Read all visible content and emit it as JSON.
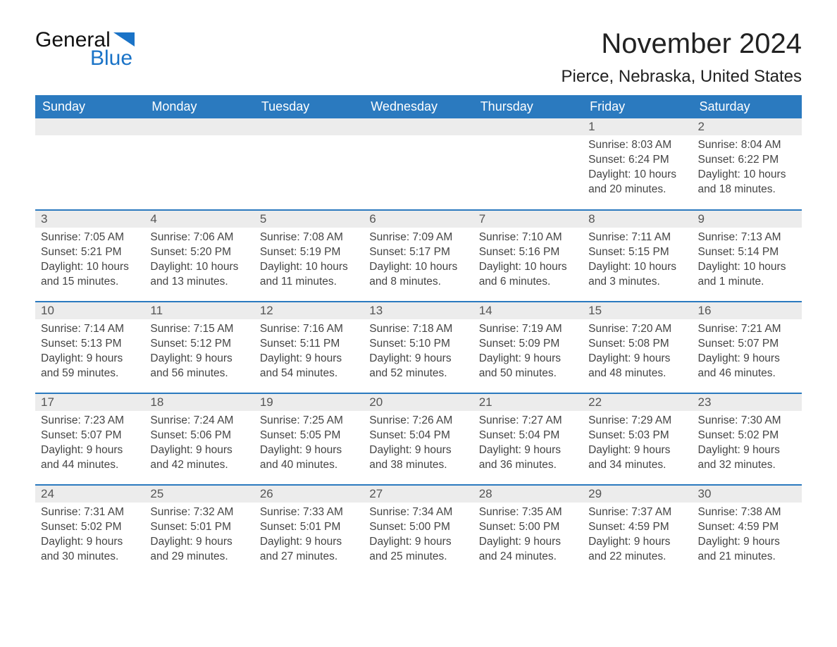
{
  "logo": {
    "text1": "General",
    "text2": "Blue",
    "accent_color": "#1a73c7"
  },
  "title": "November 2024",
  "location": "Pierce, Nebraska, United States",
  "colors": {
    "header_bg": "#2b7abf",
    "header_text": "#ffffff",
    "daynum_bg": "#ececec",
    "daynum_text": "#555555",
    "body_text": "#444444",
    "row_border": "#2b7abf"
  },
  "fonts": {
    "title_size": 40,
    "location_size": 24,
    "header_size": 18,
    "body_size": 15.5
  },
  "day_headers": [
    "Sunday",
    "Monday",
    "Tuesday",
    "Wednesday",
    "Thursday",
    "Friday",
    "Saturday"
  ],
  "weeks": [
    [
      null,
      null,
      null,
      null,
      null,
      {
        "num": "1",
        "sunrise": "Sunrise: 8:03 AM",
        "sunset": "Sunset: 6:24 PM",
        "daylight": "Daylight: 10 hours and 20 minutes."
      },
      {
        "num": "2",
        "sunrise": "Sunrise: 8:04 AM",
        "sunset": "Sunset: 6:22 PM",
        "daylight": "Daylight: 10 hours and 18 minutes."
      }
    ],
    [
      {
        "num": "3",
        "sunrise": "Sunrise: 7:05 AM",
        "sunset": "Sunset: 5:21 PM",
        "daylight": "Daylight: 10 hours and 15 minutes."
      },
      {
        "num": "4",
        "sunrise": "Sunrise: 7:06 AM",
        "sunset": "Sunset: 5:20 PM",
        "daylight": "Daylight: 10 hours and 13 minutes."
      },
      {
        "num": "5",
        "sunrise": "Sunrise: 7:08 AM",
        "sunset": "Sunset: 5:19 PM",
        "daylight": "Daylight: 10 hours and 11 minutes."
      },
      {
        "num": "6",
        "sunrise": "Sunrise: 7:09 AM",
        "sunset": "Sunset: 5:17 PM",
        "daylight": "Daylight: 10 hours and 8 minutes."
      },
      {
        "num": "7",
        "sunrise": "Sunrise: 7:10 AM",
        "sunset": "Sunset: 5:16 PM",
        "daylight": "Daylight: 10 hours and 6 minutes."
      },
      {
        "num": "8",
        "sunrise": "Sunrise: 7:11 AM",
        "sunset": "Sunset: 5:15 PM",
        "daylight": "Daylight: 10 hours and 3 minutes."
      },
      {
        "num": "9",
        "sunrise": "Sunrise: 7:13 AM",
        "sunset": "Sunset: 5:14 PM",
        "daylight": "Daylight: 10 hours and 1 minute."
      }
    ],
    [
      {
        "num": "10",
        "sunrise": "Sunrise: 7:14 AM",
        "sunset": "Sunset: 5:13 PM",
        "daylight": "Daylight: 9 hours and 59 minutes."
      },
      {
        "num": "11",
        "sunrise": "Sunrise: 7:15 AM",
        "sunset": "Sunset: 5:12 PM",
        "daylight": "Daylight: 9 hours and 56 minutes."
      },
      {
        "num": "12",
        "sunrise": "Sunrise: 7:16 AM",
        "sunset": "Sunset: 5:11 PM",
        "daylight": "Daylight: 9 hours and 54 minutes."
      },
      {
        "num": "13",
        "sunrise": "Sunrise: 7:18 AM",
        "sunset": "Sunset: 5:10 PM",
        "daylight": "Daylight: 9 hours and 52 minutes."
      },
      {
        "num": "14",
        "sunrise": "Sunrise: 7:19 AM",
        "sunset": "Sunset: 5:09 PM",
        "daylight": "Daylight: 9 hours and 50 minutes."
      },
      {
        "num": "15",
        "sunrise": "Sunrise: 7:20 AM",
        "sunset": "Sunset: 5:08 PM",
        "daylight": "Daylight: 9 hours and 48 minutes."
      },
      {
        "num": "16",
        "sunrise": "Sunrise: 7:21 AM",
        "sunset": "Sunset: 5:07 PM",
        "daylight": "Daylight: 9 hours and 46 minutes."
      }
    ],
    [
      {
        "num": "17",
        "sunrise": "Sunrise: 7:23 AM",
        "sunset": "Sunset: 5:07 PM",
        "daylight": "Daylight: 9 hours and 44 minutes."
      },
      {
        "num": "18",
        "sunrise": "Sunrise: 7:24 AM",
        "sunset": "Sunset: 5:06 PM",
        "daylight": "Daylight: 9 hours and 42 minutes."
      },
      {
        "num": "19",
        "sunrise": "Sunrise: 7:25 AM",
        "sunset": "Sunset: 5:05 PM",
        "daylight": "Daylight: 9 hours and 40 minutes."
      },
      {
        "num": "20",
        "sunrise": "Sunrise: 7:26 AM",
        "sunset": "Sunset: 5:04 PM",
        "daylight": "Daylight: 9 hours and 38 minutes."
      },
      {
        "num": "21",
        "sunrise": "Sunrise: 7:27 AM",
        "sunset": "Sunset: 5:04 PM",
        "daylight": "Daylight: 9 hours and 36 minutes."
      },
      {
        "num": "22",
        "sunrise": "Sunrise: 7:29 AM",
        "sunset": "Sunset: 5:03 PM",
        "daylight": "Daylight: 9 hours and 34 minutes."
      },
      {
        "num": "23",
        "sunrise": "Sunrise: 7:30 AM",
        "sunset": "Sunset: 5:02 PM",
        "daylight": "Daylight: 9 hours and 32 minutes."
      }
    ],
    [
      {
        "num": "24",
        "sunrise": "Sunrise: 7:31 AM",
        "sunset": "Sunset: 5:02 PM",
        "daylight": "Daylight: 9 hours and 30 minutes."
      },
      {
        "num": "25",
        "sunrise": "Sunrise: 7:32 AM",
        "sunset": "Sunset: 5:01 PM",
        "daylight": "Daylight: 9 hours and 29 minutes."
      },
      {
        "num": "26",
        "sunrise": "Sunrise: 7:33 AM",
        "sunset": "Sunset: 5:01 PM",
        "daylight": "Daylight: 9 hours and 27 minutes."
      },
      {
        "num": "27",
        "sunrise": "Sunrise: 7:34 AM",
        "sunset": "Sunset: 5:00 PM",
        "daylight": "Daylight: 9 hours and 25 minutes."
      },
      {
        "num": "28",
        "sunrise": "Sunrise: 7:35 AM",
        "sunset": "Sunset: 5:00 PM",
        "daylight": "Daylight: 9 hours and 24 minutes."
      },
      {
        "num": "29",
        "sunrise": "Sunrise: 7:37 AM",
        "sunset": "Sunset: 4:59 PM",
        "daylight": "Daylight: 9 hours and 22 minutes."
      },
      {
        "num": "30",
        "sunrise": "Sunrise: 7:38 AM",
        "sunset": "Sunset: 4:59 PM",
        "daylight": "Daylight: 9 hours and 21 minutes."
      }
    ]
  ]
}
